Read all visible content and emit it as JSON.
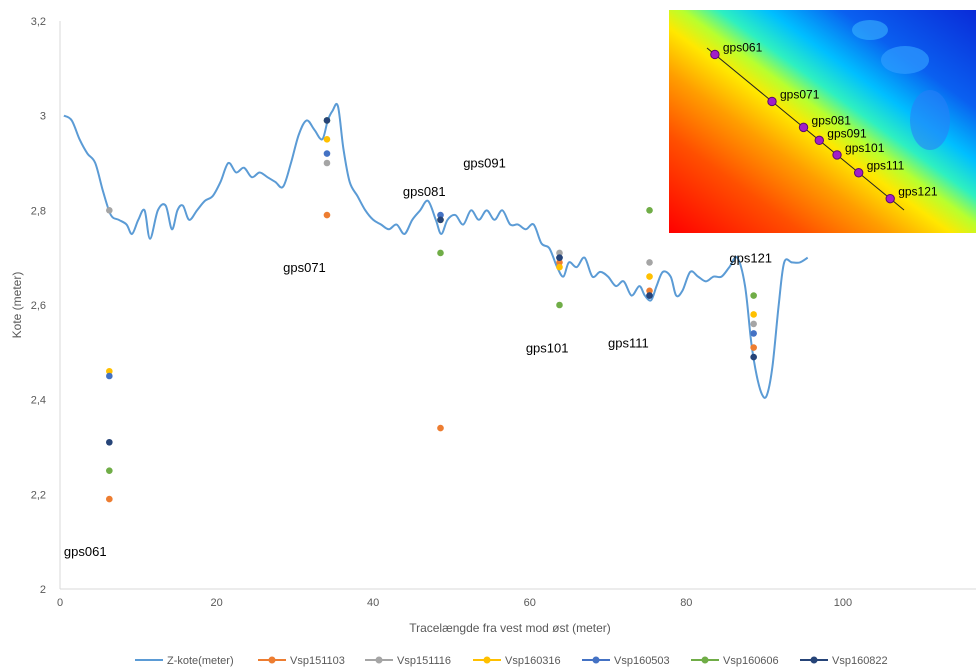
{
  "chart_data": {
    "type": "scatter",
    "xlabel": "Tracelængde fra vest mod øst (meter)",
    "ylabel": "Kote (meter)",
    "xlim": [
      0,
      117
    ],
    "ylim": [
      2,
      3.2
    ],
    "x_ticks": [
      "0",
      "20",
      "40",
      "60",
      "80",
      "100"
    ],
    "y_ticks": [
      "2",
      "2,2",
      "2,4",
      "2,6",
      "2,8",
      "3",
      "3,2"
    ],
    "grid": false,
    "legend_position": "bottom",
    "line_series": {
      "name": "Z-kote(meter)",
      "color": "#5B9BD5",
      "points": [
        [
          0.5,
          3.0
        ],
        [
          1.5,
          2.99
        ],
        [
          2.5,
          2.95
        ],
        [
          3.5,
          2.92
        ],
        [
          4.5,
          2.9
        ],
        [
          5.5,
          2.84
        ],
        [
          6.5,
          2.79
        ],
        [
          7.5,
          2.78
        ],
        [
          8.5,
          2.77
        ],
        [
          9.2,
          2.75
        ],
        [
          10,
          2.78
        ],
        [
          10.8,
          2.8
        ],
        [
          11.5,
          2.74
        ],
        [
          12.5,
          2.8
        ],
        [
          13.5,
          2.81
        ],
        [
          14.3,
          2.76
        ],
        [
          15,
          2.8
        ],
        [
          15.7,
          2.81
        ],
        [
          16.5,
          2.78
        ],
        [
          17.5,
          2.8
        ],
        [
          18.5,
          2.82
        ],
        [
          19.5,
          2.83
        ],
        [
          20.5,
          2.86
        ],
        [
          21.5,
          2.9
        ],
        [
          22.5,
          2.88
        ],
        [
          23.5,
          2.89
        ],
        [
          24.5,
          2.87
        ],
        [
          25.5,
          2.88
        ],
        [
          26.5,
          2.87
        ],
        [
          27.5,
          2.86
        ],
        [
          28.5,
          2.85
        ],
        [
          29.5,
          2.9
        ],
        [
          30.5,
          2.96
        ],
        [
          31.5,
          2.99
        ],
        [
          32.5,
          2.97
        ],
        [
          33.5,
          2.95
        ],
        [
          34.2,
          2.99
        ],
        [
          34.8,
          3.01
        ],
        [
          35.5,
          3.02
        ],
        [
          36.2,
          2.93
        ],
        [
          37,
          2.86
        ],
        [
          38,
          2.83
        ],
        [
          39,
          2.8
        ],
        [
          40,
          2.78
        ],
        [
          41,
          2.77
        ],
        [
          42,
          2.76
        ],
        [
          43,
          2.77
        ],
        [
          44,
          2.75
        ],
        [
          45,
          2.78
        ],
        [
          46,
          2.8
        ],
        [
          47,
          2.82
        ],
        [
          48,
          2.78
        ],
        [
          48.7,
          2.75
        ],
        [
          49.5,
          2.78
        ],
        [
          50.5,
          2.79
        ],
        [
          51.5,
          2.77
        ],
        [
          52.5,
          2.8
        ],
        [
          53.5,
          2.78
        ],
        [
          54.5,
          2.8
        ],
        [
          55.5,
          2.78
        ],
        [
          56.5,
          2.8
        ],
        [
          57.5,
          2.77
        ],
        [
          58.5,
          2.77
        ],
        [
          59.5,
          2.76
        ],
        [
          60.5,
          2.77
        ],
        [
          61.5,
          2.73
        ],
        [
          62.5,
          2.72
        ],
        [
          63.5,
          2.68
        ],
        [
          64.3,
          2.66
        ],
        [
          65,
          2.69
        ],
        [
          66,
          2.68
        ],
        [
          67,
          2.7
        ],
        [
          68,
          2.66
        ],
        [
          69,
          2.67
        ],
        [
          70,
          2.66
        ],
        [
          71,
          2.64
        ],
        [
          72,
          2.65
        ],
        [
          73,
          2.62
        ],
        [
          74,
          2.64
        ],
        [
          74.7,
          2.62
        ],
        [
          75.5,
          2.61
        ],
        [
          76.2,
          2.64
        ],
        [
          77,
          2.67
        ],
        [
          78,
          2.66
        ],
        [
          78.7,
          2.62
        ],
        [
          79.5,
          2.63
        ],
        [
          80.5,
          2.67
        ],
        [
          81.5,
          2.66
        ],
        [
          82.5,
          2.65
        ],
        [
          83.5,
          2.66
        ],
        [
          84.5,
          2.66
        ],
        [
          85.5,
          2.68
        ],
        [
          86.5,
          2.7
        ],
        [
          87.5,
          2.64
        ],
        [
          88.3,
          2.52
        ],
        [
          89,
          2.45
        ],
        [
          89.7,
          2.41
        ],
        [
          90.3,
          2.41
        ],
        [
          91,
          2.47
        ],
        [
          91.8,
          2.6
        ],
        [
          92.5,
          2.69
        ],
        [
          93.5,
          2.69
        ],
        [
          94.5,
          2.69
        ],
        [
          95.5,
          2.7
        ]
      ]
    },
    "series": [
      {
        "name": "Vsp151103",
        "color": "#ED7D31",
        "points": [
          [
            6.3,
            2.19
          ],
          [
            34.1,
            2.79
          ],
          [
            48.6,
            2.34
          ],
          [
            63.8,
            2.69
          ],
          [
            75.3,
            2.63
          ],
          [
            88.6,
            2.51
          ]
        ]
      },
      {
        "name": "Vsp151116",
        "color": "#A5A5A5",
        "points": [
          [
            6.3,
            2.8
          ],
          [
            34.1,
            2.9
          ],
          [
            48.6,
            2.78
          ],
          [
            63.8,
            2.71
          ],
          [
            75.3,
            2.69
          ],
          [
            88.6,
            2.56
          ]
        ]
      },
      {
        "name": "Vsp160316",
        "color": "#FFC000",
        "points": [
          [
            6.3,
            2.46
          ],
          [
            34.1,
            2.95
          ],
          [
            48.6,
            2.78
          ],
          [
            63.8,
            2.68
          ],
          [
            75.3,
            2.66
          ],
          [
            88.6,
            2.58
          ]
        ]
      },
      {
        "name": "Vsp160503",
        "color": "#4472C4",
        "points": [
          [
            6.3,
            2.45
          ],
          [
            34.1,
            2.92
          ],
          [
            48.6,
            2.79
          ],
          [
            63.8,
            2.7
          ],
          [
            75.3,
            2.62
          ],
          [
            88.6,
            2.54
          ]
        ]
      },
      {
        "name": "Vsp160606",
        "color": "#70AD47",
        "points": [
          [
            6.3,
            2.25
          ],
          [
            34.1,
            2.99
          ],
          [
            48.6,
            2.71
          ],
          [
            63.8,
            2.6
          ],
          [
            75.3,
            2.8
          ],
          [
            88.6,
            2.62
          ]
        ]
      },
      {
        "name": "Vsp160822",
        "color": "#264478",
        "points": [
          [
            6.3,
            2.31
          ],
          [
            34.1,
            2.99
          ],
          [
            48.6,
            2.78
          ],
          [
            63.8,
            2.7
          ],
          [
            75.3,
            2.62
          ],
          [
            88.6,
            2.49
          ]
        ]
      }
    ],
    "annotations": [
      {
        "text": "gps061",
        "x": 0.5,
        "y": 2.07
      },
      {
        "text": "gps071",
        "x": 28.5,
        "y": 2.67
      },
      {
        "text": "gps081",
        "x": 43.8,
        "y": 2.83
      },
      {
        "text": "gps091",
        "x": 51.5,
        "y": 2.89
      },
      {
        "text": "gps101",
        "x": 59.5,
        "y": 2.5
      },
      {
        "text": "gps111",
        "x": 70.0,
        "y": 2.51
      },
      {
        "text": "gps121",
        "x": 85.5,
        "y": 2.69
      }
    ]
  },
  "inset_map": {
    "labels": [
      "gps061",
      "gps071",
      "gps081",
      "gps091",
      "gps101",
      "gps111",
      "gps121"
    ]
  }
}
